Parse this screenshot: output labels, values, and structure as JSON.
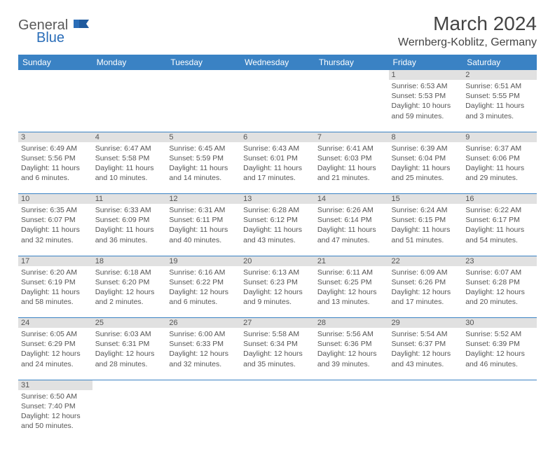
{
  "logo": {
    "gray": "General",
    "blue": "Blue"
  },
  "title": "March 2024",
  "location": "Wernberg-Koblitz, Germany",
  "colors": {
    "header_bg": "#3a82c4",
    "header_text": "#ffffff",
    "daynum_bg": "#e1e1e1",
    "border": "#3a82c4",
    "text": "#555555",
    "logo_gray": "#5a5a5a",
    "logo_blue": "#2a6db8"
  },
  "weekdays": [
    "Sunday",
    "Monday",
    "Tuesday",
    "Wednesday",
    "Thursday",
    "Friday",
    "Saturday"
  ],
  "weeks": [
    [
      null,
      null,
      null,
      null,
      null,
      {
        "n": "1",
        "sr": "6:53 AM",
        "ss": "5:53 PM",
        "dl": "10 hours and 59 minutes."
      },
      {
        "n": "2",
        "sr": "6:51 AM",
        "ss": "5:55 PM",
        "dl": "11 hours and 3 minutes."
      }
    ],
    [
      {
        "n": "3",
        "sr": "6:49 AM",
        "ss": "5:56 PM",
        "dl": "11 hours and 6 minutes."
      },
      {
        "n": "4",
        "sr": "6:47 AM",
        "ss": "5:58 PM",
        "dl": "11 hours and 10 minutes."
      },
      {
        "n": "5",
        "sr": "6:45 AM",
        "ss": "5:59 PM",
        "dl": "11 hours and 14 minutes."
      },
      {
        "n": "6",
        "sr": "6:43 AM",
        "ss": "6:01 PM",
        "dl": "11 hours and 17 minutes."
      },
      {
        "n": "7",
        "sr": "6:41 AM",
        "ss": "6:03 PM",
        "dl": "11 hours and 21 minutes."
      },
      {
        "n": "8",
        "sr": "6:39 AM",
        "ss": "6:04 PM",
        "dl": "11 hours and 25 minutes."
      },
      {
        "n": "9",
        "sr": "6:37 AM",
        "ss": "6:06 PM",
        "dl": "11 hours and 29 minutes."
      }
    ],
    [
      {
        "n": "10",
        "sr": "6:35 AM",
        "ss": "6:07 PM",
        "dl": "11 hours and 32 minutes."
      },
      {
        "n": "11",
        "sr": "6:33 AM",
        "ss": "6:09 PM",
        "dl": "11 hours and 36 minutes."
      },
      {
        "n": "12",
        "sr": "6:31 AM",
        "ss": "6:11 PM",
        "dl": "11 hours and 40 minutes."
      },
      {
        "n": "13",
        "sr": "6:28 AM",
        "ss": "6:12 PM",
        "dl": "11 hours and 43 minutes."
      },
      {
        "n": "14",
        "sr": "6:26 AM",
        "ss": "6:14 PM",
        "dl": "11 hours and 47 minutes."
      },
      {
        "n": "15",
        "sr": "6:24 AM",
        "ss": "6:15 PM",
        "dl": "11 hours and 51 minutes."
      },
      {
        "n": "16",
        "sr": "6:22 AM",
        "ss": "6:17 PM",
        "dl": "11 hours and 54 minutes."
      }
    ],
    [
      {
        "n": "17",
        "sr": "6:20 AM",
        "ss": "6:19 PM",
        "dl": "11 hours and 58 minutes."
      },
      {
        "n": "18",
        "sr": "6:18 AM",
        "ss": "6:20 PM",
        "dl": "12 hours and 2 minutes."
      },
      {
        "n": "19",
        "sr": "6:16 AM",
        "ss": "6:22 PM",
        "dl": "12 hours and 6 minutes."
      },
      {
        "n": "20",
        "sr": "6:13 AM",
        "ss": "6:23 PM",
        "dl": "12 hours and 9 minutes."
      },
      {
        "n": "21",
        "sr": "6:11 AM",
        "ss": "6:25 PM",
        "dl": "12 hours and 13 minutes."
      },
      {
        "n": "22",
        "sr": "6:09 AM",
        "ss": "6:26 PM",
        "dl": "12 hours and 17 minutes."
      },
      {
        "n": "23",
        "sr": "6:07 AM",
        "ss": "6:28 PM",
        "dl": "12 hours and 20 minutes."
      }
    ],
    [
      {
        "n": "24",
        "sr": "6:05 AM",
        "ss": "6:29 PM",
        "dl": "12 hours and 24 minutes."
      },
      {
        "n": "25",
        "sr": "6:03 AM",
        "ss": "6:31 PM",
        "dl": "12 hours and 28 minutes."
      },
      {
        "n": "26",
        "sr": "6:00 AM",
        "ss": "6:33 PM",
        "dl": "12 hours and 32 minutes."
      },
      {
        "n": "27",
        "sr": "5:58 AM",
        "ss": "6:34 PM",
        "dl": "12 hours and 35 minutes."
      },
      {
        "n": "28",
        "sr": "5:56 AM",
        "ss": "6:36 PM",
        "dl": "12 hours and 39 minutes."
      },
      {
        "n": "29",
        "sr": "5:54 AM",
        "ss": "6:37 PM",
        "dl": "12 hours and 43 minutes."
      },
      {
        "n": "30",
        "sr": "5:52 AM",
        "ss": "6:39 PM",
        "dl": "12 hours and 46 minutes."
      }
    ],
    [
      {
        "n": "31",
        "sr": "6:50 AM",
        "ss": "7:40 PM",
        "dl": "12 hours and 50 minutes."
      },
      null,
      null,
      null,
      null,
      null,
      null
    ]
  ],
  "labels": {
    "sunrise": "Sunrise:",
    "sunset": "Sunset:",
    "daylight": "Daylight:"
  }
}
